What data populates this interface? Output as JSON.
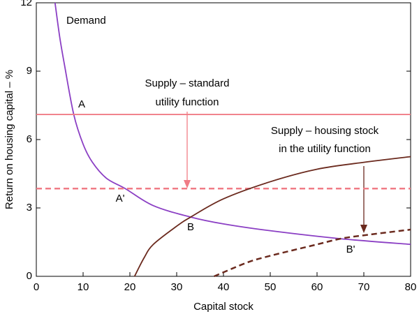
{
  "chart_data": {
    "type": "line",
    "xlabel": "Capital stock",
    "ylabel": "Return on housing capital – %",
    "xlim": [
      0,
      80
    ],
    "xticks": [
      0,
      10,
      20,
      30,
      40,
      50,
      60,
      70,
      80
    ],
    "ylim": [
      0,
      12
    ],
    "yticks": [
      0,
      3,
      6,
      9,
      12
    ],
    "series": [
      {
        "name": "Demand",
        "color": "#8b3fc4",
        "dashed": false,
        "x": [
          4,
          5,
          6,
          8,
          10,
          12,
          15,
          19,
          25,
          33,
          40,
          50,
          65,
          80
        ],
        "values": [
          12,
          10.5,
          9.3,
          7.1,
          5.8,
          5.0,
          4.3,
          3.85,
          3.1,
          2.6,
          2.3,
          2.0,
          1.65,
          1.4
        ]
      },
      {
        "label_lines": [
          "Supply – standard",
          "utility function"
        ],
        "color": "#f07c86",
        "dashed": false,
        "x": [
          0,
          80
        ],
        "values": [
          7.1,
          7.1
        ]
      },
      {
        "color": "#f07c86",
        "dashed": true,
        "x": [
          0,
          80
        ],
        "values": [
          3.85,
          3.85
        ]
      },
      {
        "label_lines": [
          "Supply – housing stock",
          "in the utility function"
        ],
        "color": "#6b2a1e",
        "dashed": false,
        "x": [
          21,
          23,
          25,
          30,
          33,
          40,
          50,
          60,
          70,
          80
        ],
        "values": [
          0,
          0.8,
          1.4,
          2.2,
          2.6,
          3.4,
          4.15,
          4.7,
          5.0,
          5.25
        ]
      },
      {
        "color": "#6b2a1e",
        "dashed": true,
        "x": [
          38,
          45,
          50,
          60,
          65,
          70,
          80
        ],
        "values": [
          0,
          0.6,
          0.9,
          1.4,
          1.65,
          1.8,
          2.05
        ]
      }
    ],
    "annotations": [
      "A",
      "A'",
      "B",
      "B'"
    ]
  }
}
